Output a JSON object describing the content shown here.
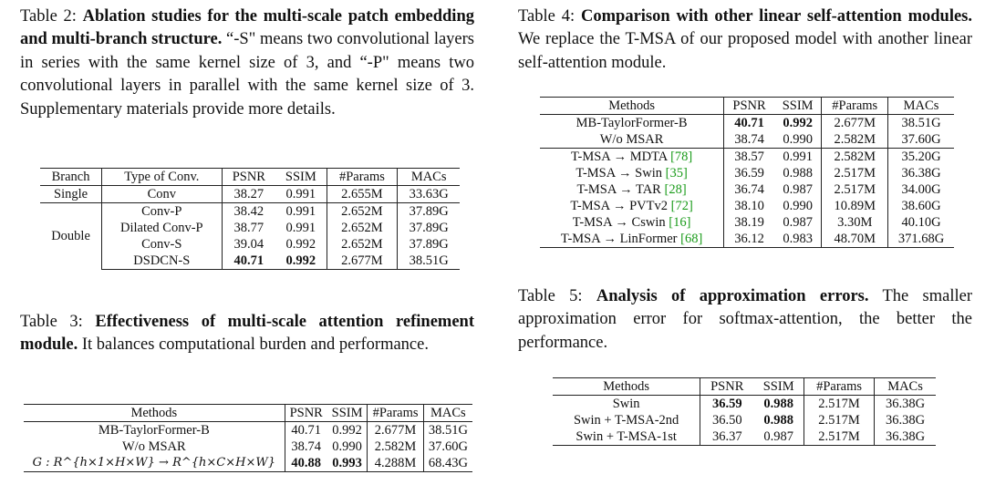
{
  "table2": {
    "caption_label": "Table 2:",
    "caption_title": "Ablation studies for the multi-scale patch embedding and multi-branch structure.",
    "caption_text": "“-S\" means two convolutional layers in series with the same kernel size of 3, and “-P\" means two convolutional layers in parallel with the same kernel size of 3. Supplementary materials provide more details.",
    "headers": [
      "Branch",
      "Type of Conv.",
      "PSNR",
      "SSIM",
      "#Params",
      "MACs"
    ],
    "groups": [
      {
        "branch": "Single",
        "rows": [
          {
            "type": "Conv",
            "psnr": "38.27",
            "ssim": "0.991",
            "params": "2.655M",
            "macs": "33.63G"
          }
        ]
      },
      {
        "branch": "Double",
        "rows": [
          {
            "type": "Conv-P",
            "psnr": "38.42",
            "ssim": "0.991",
            "params": "2.652M",
            "macs": "37.89G"
          },
          {
            "type": "Dilated Conv-P",
            "psnr": "38.77",
            "ssim": "0.991",
            "params": "2.652M",
            "macs": "37.89G"
          },
          {
            "type": "Conv-S",
            "psnr": "39.04",
            "ssim": "0.992",
            "params": "2.652M",
            "macs": "37.89G"
          },
          {
            "type": "DSDCN-S",
            "psnr": "40.71",
            "ssim": "0.992",
            "params": "2.677M",
            "macs": "38.51G"
          }
        ]
      }
    ]
  },
  "table3": {
    "caption_label": "Table 3:",
    "caption_title": "Effectiveness of multi-scale attention refinement module.",
    "caption_text": "It balances computational burden and performance.",
    "headers": [
      "Methods",
      "PSNR",
      "SSIM",
      "#Params",
      "MACs"
    ],
    "rows": [
      {
        "method": "MB-TaylorFormer-B",
        "psnr": "40.71",
        "ssim": "0.992",
        "params": "2.677M",
        "macs": "38.51G"
      },
      {
        "method": "W/o MSAR",
        "psnr": "38.74",
        "ssim": "0.990",
        "params": "2.582M",
        "macs": "37.60G"
      },
      {
        "method": "G : R^{h×1×H×W} → R^{h×C×H×W}",
        "psnr": "40.88",
        "ssim": "0.993",
        "params": "4.288M",
        "macs": "68.43G"
      }
    ]
  },
  "table4": {
    "caption_label": "Table 4:",
    "caption_title": "Comparison with other linear self-attention modules.",
    "caption_text": "We replace the T-MSA of our proposed model with another linear self-attention module.",
    "headers": [
      "Methods",
      "PSNR",
      "SSIM",
      "#Params",
      "MACs"
    ],
    "rows": [
      {
        "method": "MB-TaylorFormer-B",
        "cite": "",
        "psnr": "40.71",
        "ssim": "0.992",
        "params": "2.677M",
        "macs": "38.51G"
      },
      {
        "method": "W/o MSAR",
        "cite": "",
        "psnr": "38.74",
        "ssim": "0.990",
        "params": "2.582M",
        "macs": "37.60G"
      },
      {
        "method": "T-MSA → MDTA",
        "cite": "[78]",
        "psnr": "38.57",
        "ssim": "0.991",
        "params": "2.582M",
        "macs": "35.20G"
      },
      {
        "method": "T-MSA → Swin",
        "cite": "[35]",
        "psnr": "36.59",
        "ssim": "0.988",
        "params": "2.517M",
        "macs": "36.38G"
      },
      {
        "method": "T-MSA → TAR",
        "cite": "[28]",
        "psnr": "36.74",
        "ssim": "0.987",
        "params": "2.517M",
        "macs": "34.00G"
      },
      {
        "method": "T-MSA → PVTv2",
        "cite": "[72]",
        "psnr": "38.10",
        "ssim": "0.990",
        "params": "10.89M",
        "macs": "38.60G"
      },
      {
        "method": "T-MSA → Cswin",
        "cite": "[16]",
        "psnr": "38.19",
        "ssim": "0.987",
        "params": "3.30M",
        "macs": "40.10G"
      },
      {
        "method": "T-MSA → LinFormer",
        "cite": "[68]",
        "psnr": "36.12",
        "ssim": "0.983",
        "params": "48.70M",
        "macs": "371.68G"
      }
    ]
  },
  "table5": {
    "caption_label": "Table 5:",
    "caption_title": "Analysis of approximation errors.",
    "caption_text": "The smaller approximation error for softmax-attention, the better the performance.",
    "headers": [
      "Methods",
      "PSNR",
      "SSIM",
      "#Params",
      "MACs"
    ],
    "rows": [
      {
        "method": "Swin",
        "psnr": "36.59",
        "ssim": "0.988",
        "params": "2.517M",
        "macs": "36.38G"
      },
      {
        "method": "Swin + T-MSA-2nd",
        "psnr": "36.50",
        "ssim": "0.988",
        "params": "2.517M",
        "macs": "36.38G"
      },
      {
        "method": "Swin + T-MSA-1st",
        "psnr": "36.37",
        "ssim": "0.987",
        "params": "2.517M",
        "macs": "36.38G"
      }
    ]
  }
}
